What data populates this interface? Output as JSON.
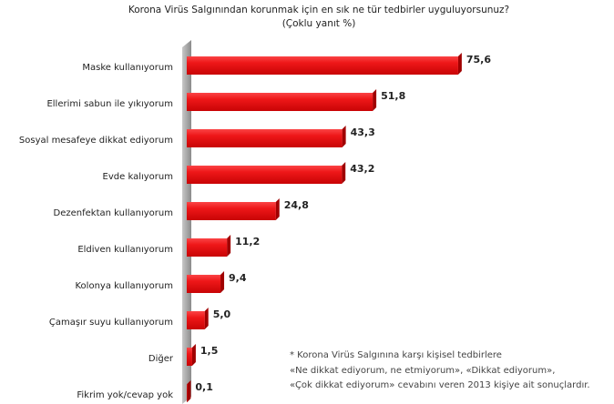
{
  "chart_data": {
    "type": "bar",
    "orientation": "horizontal",
    "title": "Korona Virüs Salgınından korunmak için en sık ne tür tedbirler uyguluyorsunuz?",
    "subtitle": "(Çoklu yanıt %)",
    "categories": [
      "Maske kullanıyorum",
      "Ellerimi sabun ile yıkıyorum",
      "Sosyal mesafeye dikkat ediyorum",
      "Evde kalıyorum",
      "Dezenfektan kullanıyorum",
      "Eldiven kullanıyorum",
      "Kolonya kullanıyorum",
      "Çamaşır suyu kullanıyorum",
      "Diğer",
      "Fikrim yok/cevap yok"
    ],
    "values": [
      75.6,
      51.8,
      43.3,
      43.2,
      24.8,
      11.2,
      9.4,
      5.0,
      1.5,
      0.1
    ],
    "value_labels": [
      "75,6",
      "51,8",
      "43,3",
      "43,2",
      "24,8",
      "11,2",
      "9,4",
      "5,0",
      "1,5",
      "0,1"
    ],
    "color": "#e8141b",
    "notes": [
      "* Korona Virüs Salgınına karşı kişisel tedbirlere",
      "«Ne dikkat ediyorum, ne etmiyorum», «Dikkat ediyorum»,",
      "«Çok dikkat ediyorum» cevabını veren 2013 kişiye ait sonuçlardır."
    ]
  }
}
